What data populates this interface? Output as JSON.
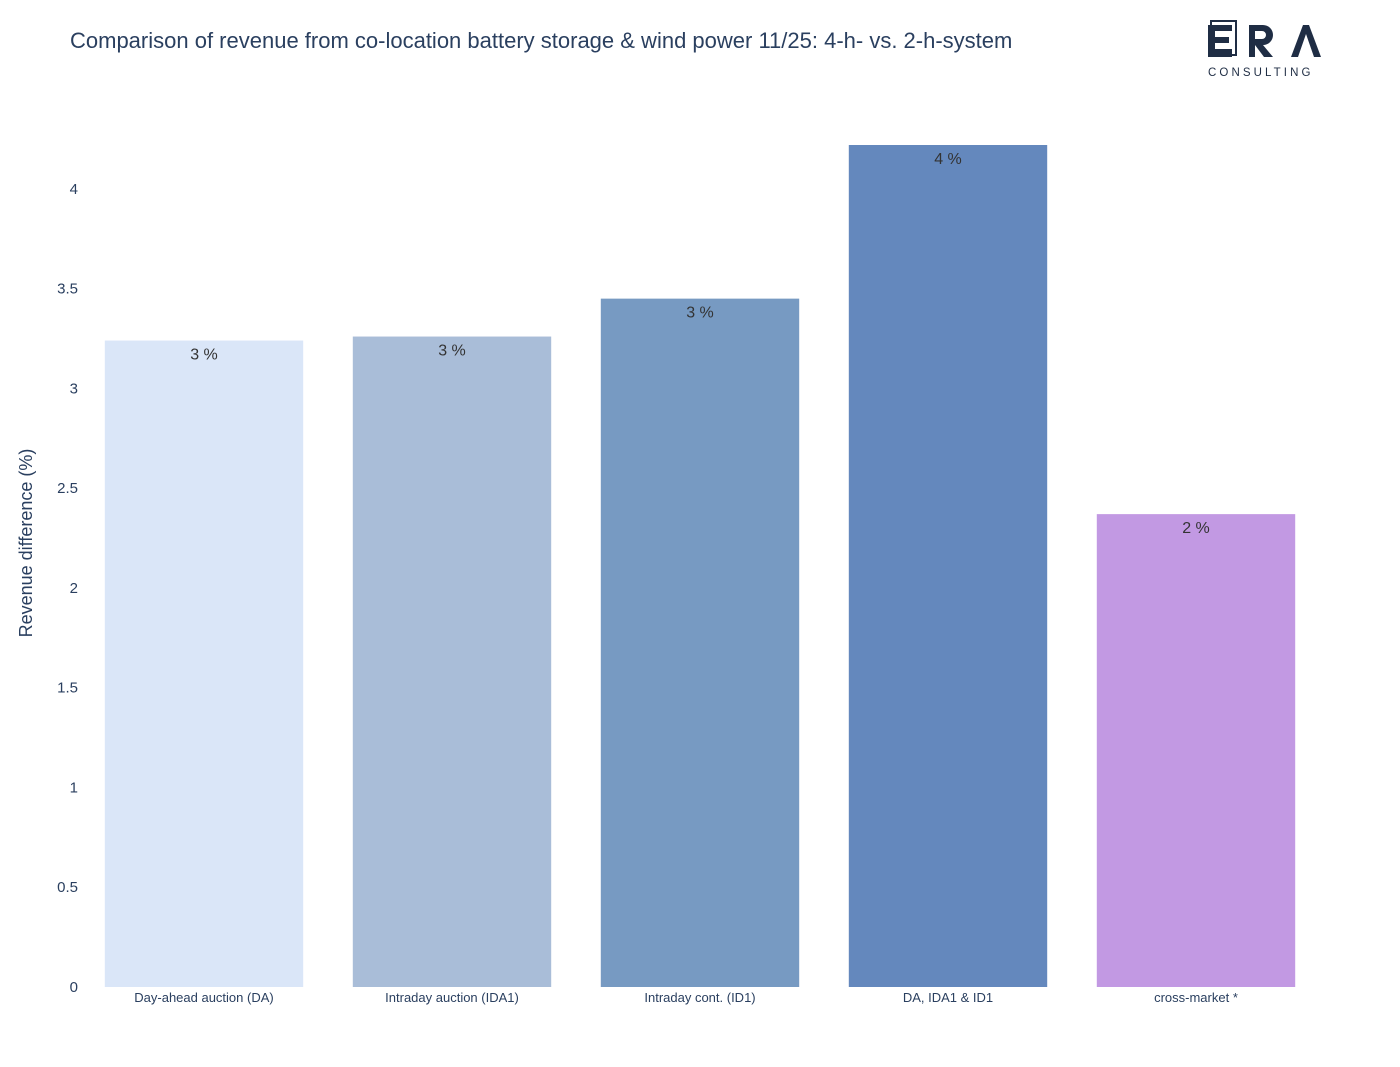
{
  "title": "Comparison of revenue from co-location battery storage & wind power 11/25: 4-h- vs. 2-h-system",
  "logo": {
    "letters": [
      "E",
      "R",
      "A"
    ],
    "subtitle": "CONSULTING",
    "color": "#1f2d44"
  },
  "chart_data": {
    "type": "bar",
    "categories": [
      "Day-ahead auction (DA)",
      "Intraday auction (IDA1)",
      "Intraday cont. (ID1)",
      "DA, IDA1 & ID1",
      "cross-market *"
    ],
    "values": [
      3.24,
      3.26,
      3.45,
      4.22,
      2.37
    ],
    "data_labels": [
      "3 %",
      "3 %",
      "3 %",
      "4 %",
      "2 %"
    ],
    "colors": [
      "#dae6f8",
      "#a9bdd8",
      "#779ac2",
      "#6488bd",
      "#c299e3"
    ],
    "title": "Comparison of revenue from co-location battery storage & wind power 11/25: 4-h- vs. 2-h-system",
    "xlabel": "",
    "ylabel": "Revenue difference (%)",
    "ylim": [
      0,
      4.22
    ],
    "yticks": [
      0,
      0.5,
      1,
      1.5,
      2,
      2.5,
      3,
      3.5,
      4
    ],
    "ytick_labels": [
      "0",
      "0.5",
      "1",
      "1.5",
      "2",
      "2.5",
      "3",
      "3.5",
      "4"
    ],
    "grid": false,
    "legend": "none"
  }
}
